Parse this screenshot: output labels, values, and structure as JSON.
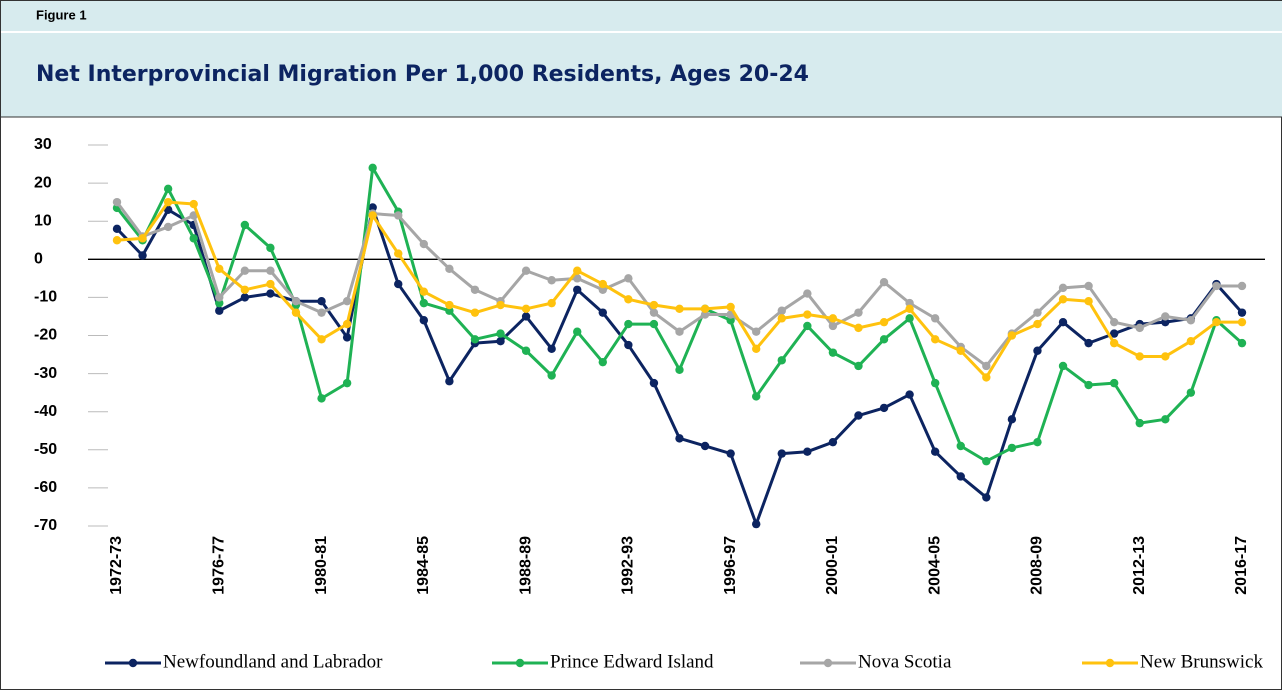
{
  "chart_data": {
    "type": "line",
    "figure_label": "Figure 1",
    "title": "Net Interprovincial Migration Per 1,000 Residents, Ages 20-24",
    "categories": [
      "1972-73",
      null,
      null,
      null,
      "1976-77",
      null,
      null,
      null,
      "1980-81",
      null,
      null,
      null,
      "1984-85",
      null,
      null,
      null,
      "1988-89",
      null,
      null,
      null,
      "1992-93",
      null,
      null,
      null,
      "1996-97",
      null,
      null,
      null,
      "2000-01",
      null,
      null,
      null,
      "2004-05",
      null,
      null,
      null,
      "2008-09",
      null,
      null,
      null,
      "2012-13",
      null,
      null,
      null,
      "2016-17"
    ],
    "ylim": [
      -70,
      30
    ],
    "yticks": [
      30,
      20,
      10,
      0,
      -10,
      -20,
      -30,
      -40,
      -50,
      -60,
      -70
    ],
    "grid": true,
    "series": [
      {
        "name": "Newfoundland and Labrador",
        "color": "#0c2461",
        "values": [
          8,
          1,
          13,
          9,
          -13.5,
          -10,
          -9,
          -11,
          -11,
          -20.5,
          13.6,
          -6.5,
          -16,
          -32,
          -22,
          -21.5,
          -15,
          -23.5,
          -8,
          -14,
          -22.5,
          -32.5,
          -47,
          -49,
          -51,
          -69.5,
          -51,
          -50.5,
          -48,
          -41,
          -39,
          -35.5,
          -50.5,
          -57,
          -62.5,
          -42,
          -24,
          -16.5,
          -22,
          -19.5,
          -17,
          -16.5,
          -15.5,
          -6.5,
          -14
        ]
      },
      {
        "name": "Prince Edward Island",
        "color": "#1fb254",
        "values": [
          13.5,
          5,
          18.5,
          5.5,
          -11.5,
          9,
          3,
          -12,
          -36.5,
          -32.5,
          24,
          12.5,
          -11.5,
          -13.5,
          -21,
          -19.5,
          -24,
          -30.5,
          -19,
          -27,
          -17,
          -17,
          -29,
          -13,
          -16,
          -36,
          -26.5,
          -17.5,
          -24.5,
          -28,
          -21,
          -15.5,
          -32.5,
          -49,
          -53,
          -49.5,
          -48,
          -28,
          -33,
          -32.5,
          -43,
          -42,
          -35,
          -16,
          -22
        ]
      },
      {
        "name": "Nova Scotia",
        "color": "#a6a6a6",
        "values": [
          15,
          6,
          8.5,
          11.5,
          -10,
          -3,
          -3,
          -11,
          -14,
          -11,
          12,
          11.5,
          4,
          -2.5,
          -8,
          -11,
          -3,
          -5.5,
          -5,
          -8,
          -5,
          -14,
          -19,
          -14.5,
          -14.5,
          -19,
          -13.5,
          -9,
          -17.5,
          -14,
          -6,
          -11.5,
          -15.5,
          -23,
          -28,
          -19.5,
          -14,
          -7.5,
          -7,
          -16.5,
          -18,
          -15,
          -16,
          -7,
          -7
        ]
      },
      {
        "name": "New Brunswick",
        "color": "#ffc20e",
        "values": [
          5,
          5.5,
          15,
          14.5,
          -2.5,
          -8,
          -6.5,
          -14,
          -21,
          -17,
          11.5,
          1.5,
          -8.5,
          -12,
          -14,
          -12,
          -13,
          -11.5,
          -3,
          -6.5,
          -10.5,
          -12,
          -13,
          -13,
          -12.5,
          -23.5,
          -15.5,
          -14.5,
          -15.5,
          -18,
          -16.5,
          -13,
          -21,
          -24,
          -31,
          -20,
          -17,
          -10.5,
          -11,
          -22,
          -25.5,
          -25.5,
          -21.5,
          -16.5,
          -16.5
        ]
      }
    ]
  }
}
